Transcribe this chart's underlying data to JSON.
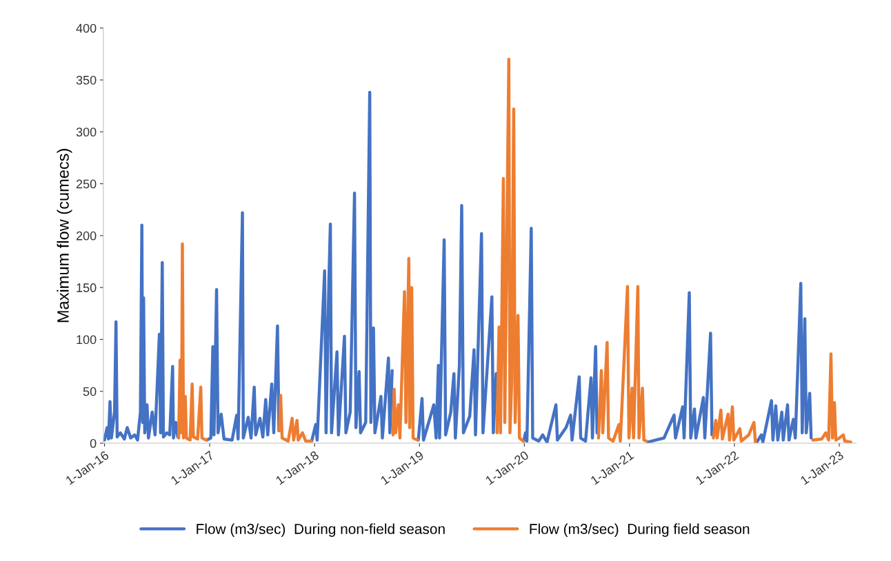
{
  "chart_data": {
    "type": "line",
    "ylabel": "Maximum flow (cumecs)",
    "xlim": [
      "2015-12-28",
      "2023-03-01"
    ],
    "ylim": [
      0,
      400
    ],
    "yticks": [
      0,
      50,
      100,
      150,
      200,
      250,
      300,
      350,
      400
    ],
    "xticks": [
      {
        "value": "2016-01-01",
        "label": "1-Jan-16"
      },
      {
        "value": "2017-01-01",
        "label": "1-Jan-17"
      },
      {
        "value": "2018-01-01",
        "label": "1-Jan-18"
      },
      {
        "value": "2019-01-01",
        "label": "1-Jan-19"
      },
      {
        "value": "2020-01-01",
        "label": "1-Jan-20"
      },
      {
        "value": "2021-01-01",
        "label": "1-Jan-21"
      },
      {
        "value": "2022-01-01",
        "label": "1-Jan-22"
      },
      {
        "value": "2023-01-01",
        "label": "1-Jan-23"
      }
    ],
    "grid": false,
    "legend": "bottom",
    "marker": "none",
    "line_style": "solid",
    "series": [
      {
        "name": "Flow (m3/sec)  During non-field season",
        "color": "#4472c4",
        "x": [
          "2016-01-01",
          "2016-01-10",
          "2016-01-15",
          "2016-01-20",
          "2016-01-25",
          "2016-02-05",
          "2016-02-10",
          "2016-02-14",
          "2016-02-25",
          "2016-03-10",
          "2016-03-20",
          "2016-04-01",
          "2016-04-15",
          "2016-04-25",
          "2016-05-05",
          "2016-05-10",
          "2016-05-13",
          "2016-05-16",
          "2016-05-20",
          "2016-05-28",
          "2016-06-02",
          "2016-06-15",
          "2016-06-25",
          "2016-07-10",
          "2016-07-14",
          "2016-07-20",
          "2016-07-24",
          "2016-08-05",
          "2016-08-15",
          "2016-08-25",
          "2016-08-28",
          "2016-09-05",
          "2016-09-12",
          "2016-09-13",
          "2016-12-22",
          "2017-01-05",
          "2017-01-12",
          "2017-01-16",
          "2017-01-25",
          "2017-01-30",
          "2017-02-10",
          "2017-02-20",
          "2017-03-20",
          "2017-04-05",
          "2017-04-10",
          "2017-04-25",
          "2017-04-28",
          "2017-05-15",
          "2017-05-25",
          "2017-06-05",
          "2017-06-10",
          "2017-06-25",
          "2017-07-05",
          "2017-07-15",
          "2017-07-22",
          "2017-08-05",
          "2017-08-12",
          "2017-08-25",
          "2017-08-30",
          "2017-08-31",
          "2017-12-22",
          "2018-01-05",
          "2018-01-10",
          "2018-02-05",
          "2018-02-10",
          "2018-02-20",
          "2018-02-25",
          "2018-03-01",
          "2018-03-20",
          "2018-03-25",
          "2018-04-15",
          "2018-04-20",
          "2018-05-05",
          "2018-05-20",
          "2018-05-25",
          "2018-06-05",
          "2018-06-10",
          "2018-06-28",
          "2018-07-12",
          "2018-07-16",
          "2018-07-25",
          "2018-07-30",
          "2018-08-20",
          "2018-08-25",
          "2018-09-15",
          "2018-09-20",
          "2018-09-28",
          "2018-09-29",
          "2018-12-28",
          "2019-01-10",
          "2019-01-15",
          "2019-02-20",
          "2019-02-28",
          "2019-03-08",
          "2019-03-12",
          "2019-03-28",
          "2019-04-02",
          "2019-04-20",
          "2019-05-01",
          "2019-05-06",
          "2019-05-20",
          "2019-05-28",
          "2019-06-03",
          "2019-06-25",
          "2019-07-10",
          "2019-07-15",
          "2019-08-05",
          "2019-08-10",
          "2019-09-10",
          "2019-09-15",
          "2019-09-25",
          "2019-09-26",
          "2019-12-30",
          "2020-01-05",
          "2020-01-10",
          "2020-01-25",
          "2020-01-30",
          "2020-02-20",
          "2020-03-05",
          "2020-03-20",
          "2020-04-20",
          "2020-04-25",
          "2020-05-25",
          "2020-06-10",
          "2020-06-15",
          "2020-07-10",
          "2020-07-15",
          "2020-08-01",
          "2020-08-20",
          "2020-08-25",
          "2020-09-05",
          "2020-09-10",
          "2020-09-11",
          "2021-03-05",
          "2021-04-01",
          "2021-05-01",
          "2021-06-05",
          "2021-06-10",
          "2021-07-05",
          "2021-07-10",
          "2021-07-28",
          "2021-08-02",
          "2021-08-15",
          "2021-08-20",
          "2021-09-15",
          "2021-09-20",
          "2021-10-10",
          "2021-10-15",
          "2021-10-16",
          "2022-03-20",
          "2022-04-05",
          "2022-04-10",
          "2022-05-10",
          "2022-05-15",
          "2022-05-25",
          "2022-06-01",
          "2022-06-15",
          "2022-06-20",
          "2022-07-05",
          "2022-07-10",
          "2022-07-25",
          "2022-08-01",
          "2022-08-20",
          "2022-08-25",
          "2022-09-03",
          "2022-09-08",
          "2022-09-20",
          "2022-09-25"
        ],
        "values": [
          3,
          15,
          4,
          40,
          5,
          30,
          117,
          6,
          10,
          4,
          15,
          5,
          8,
          3,
          30,
          210,
          20,
          140,
          10,
          37,
          5,
          30,
          8,
          105,
          10,
          174,
          6,
          10,
          8,
          74,
          5,
          20,
          6,
          null,
          3,
          5,
          93,
          8,
          148,
          10,
          28,
          4,
          3,
          27,
          4,
          222,
          5,
          25,
          5,
          54,
          8,
          24,
          6,
          42,
          8,
          57,
          10,
          113,
          12,
          null,
          2,
          18,
          3,
          166,
          10,
          158,
          211,
          10,
          88,
          8,
          103,
          10,
          30,
          241,
          15,
          69,
          10,
          20,
          338,
          20,
          111,
          10,
          45,
          5,
          82,
          10,
          70,
          null,
          3,
          43,
          3,
          37,
          5,
          75,
          5,
          196,
          8,
          30,
          67,
          5,
          75,
          229,
          10,
          26,
          90,
          8,
          202,
          10,
          141,
          10,
          67,
          null,
          2,
          10,
          2,
          207,
          5,
          2,
          8,
          1,
          37,
          3,
          15,
          27,
          3,
          64,
          5,
          2,
          63,
          5,
          93,
          10,
          null,
          1,
          3,
          5,
          27,
          5,
          35,
          5,
          145,
          5,
          33,
          5,
          44,
          5,
          106,
          8,
          null,
          1,
          8,
          1,
          41,
          3,
          36,
          3,
          30,
          3,
          37,
          3,
          23,
          5,
          154,
          10,
          120,
          10,
          48,
          5
        ]
      },
      {
        "name": "Flow (m3/sec)  During field season",
        "color": "#ed7d31",
        "x": [
          "2016-09-15",
          "2016-09-20",
          "2016-09-25",
          "2016-09-28",
          "2016-10-02",
          "2016-10-08",
          "2016-10-12",
          "2016-10-25",
          "2016-11-01",
          "2016-11-05",
          "2016-11-20",
          "2016-12-01",
          "2016-12-05",
          "2016-12-20",
          "2016-12-21",
          "2017-09-01",
          "2017-09-05",
          "2017-09-10",
          "2017-10-01",
          "2017-10-15",
          "2017-10-20",
          "2017-11-01",
          "2017-11-05",
          "2017-11-20",
          "2017-12-01",
          "2017-12-20",
          "2017-12-21",
          "2018-10-01",
          "2018-10-05",
          "2018-10-10",
          "2018-10-20",
          "2018-10-25",
          "2018-11-10",
          "2018-11-15",
          "2018-11-25",
          "2018-11-28",
          "2018-12-05",
          "2018-12-10",
          "2018-12-25",
          "2018-12-26",
          "2019-09-28",
          "2019-10-05",
          "2019-10-10",
          "2019-10-20",
          "2019-10-25",
          "2019-11-08",
          "2019-11-12",
          "2019-11-18",
          "2019-11-25",
          "2019-11-30",
          "2019-12-10",
          "2019-12-15",
          "2019-12-28",
          "2019-12-29",
          "2020-09-15",
          "2020-09-25",
          "2020-09-30",
          "2020-10-15",
          "2020-10-20",
          "2020-11-05",
          "2020-11-25",
          "2020-11-30",
          "2020-12-25",
          "2020-12-30",
          "2021-01-10",
          "2021-01-15",
          "2021-01-30",
          "2021-02-03",
          "2021-02-15",
          "2021-02-20",
          "2021-03-01",
          "2021-03-02",
          "2021-10-20",
          "2021-10-28",
          "2021-11-02",
          "2021-11-15",
          "2021-11-20",
          "2021-12-10",
          "2021-12-15",
          "2021-12-25",
          "2021-12-30",
          "2022-01-20",
          "2022-01-25",
          "2022-02-20",
          "2022-03-10",
          "2022-03-15",
          "2022-03-16",
          "2022-10-01",
          "2022-11-01",
          "2022-11-15",
          "2022-11-25",
          "2022-12-03",
          "2022-12-08",
          "2022-12-15",
          "2022-12-20",
          "2023-01-01",
          "2023-01-15",
          "2023-01-20",
          "2023-02-10"
        ],
        "values": [
          5,
          80,
          10,
          192,
          5,
          45,
          5,
          3,
          57,
          6,
          4,
          54,
          5,
          3,
          null,
          12,
          46,
          5,
          2,
          24,
          3,
          22,
          3,
          10,
          2,
          2,
          null,
          8,
          52,
          10,
          37,
          5,
          146,
          20,
          178,
          15,
          150,
          5,
          3,
          null,
          10,
          112,
          10,
          255,
          20,
          370,
          10,
          60,
          322,
          20,
          123,
          5,
          2,
          null,
          5,
          70,
          10,
          97,
          5,
          2,
          18,
          2,
          151,
          5,
          53,
          5,
          151,
          5,
          53,
          3,
          2,
          null,
          5,
          22,
          5,
          32,
          4,
          28,
          3,
          35,
          3,
          14,
          2,
          8,
          20,
          1,
          null,
          3,
          4,
          10,
          3,
          86,
          5,
          39,
          3,
          5,
          8,
          2,
          1
        ]
      }
    ]
  }
}
